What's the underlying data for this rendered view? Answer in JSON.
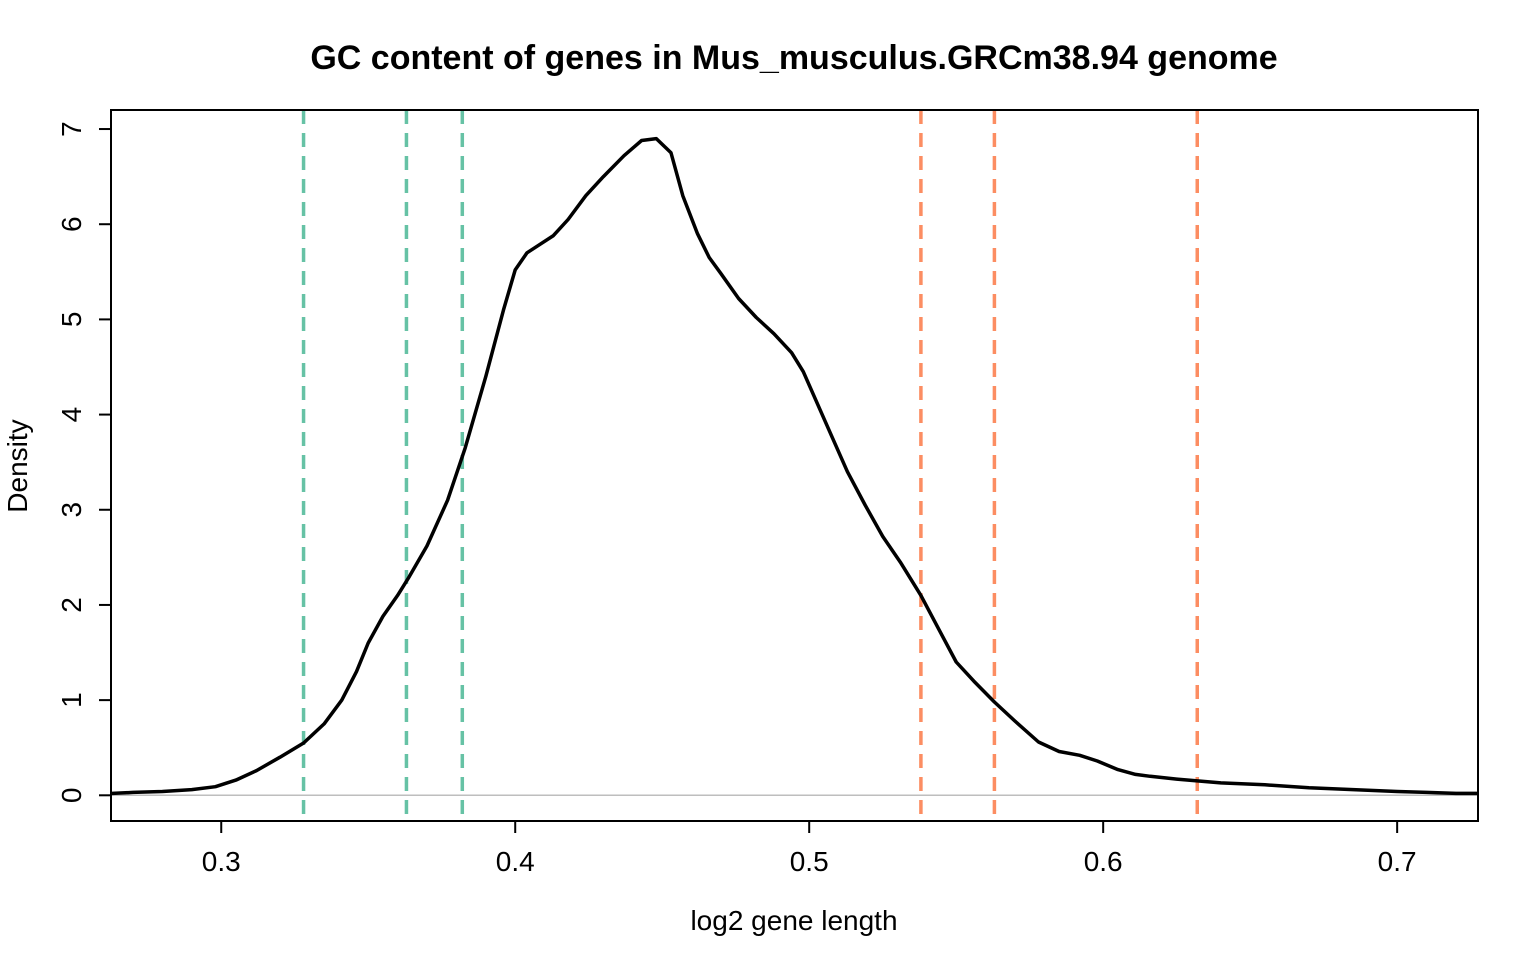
{
  "chart_data": {
    "type": "line",
    "title": "GC content of genes in Mus_musculus.GRCm38.94 genome",
    "xlabel": "log2 gene length",
    "ylabel": "Density",
    "xlim": [
      0.2625,
      0.7275
    ],
    "ylim": [
      -0.27,
      7.2
    ],
    "x_ticks": [
      0.3,
      0.4,
      0.5,
      0.6,
      0.7
    ],
    "x_tick_labels": [
      "0.3",
      "0.4",
      "0.5",
      "0.6",
      "0.7"
    ],
    "y_ticks": [
      0,
      1,
      2,
      3,
      4,
      5,
      6,
      7
    ],
    "y_tick_labels": [
      "0",
      "1",
      "2",
      "3",
      "4",
      "5",
      "6",
      "7"
    ],
    "baseline": 0,
    "grid": false,
    "series": [
      {
        "color": "#000000",
        "x": [
          0.263,
          0.27,
          0.28,
          0.29,
          0.298,
          0.305,
          0.312,
          0.32,
          0.328,
          0.335,
          0.341,
          0.346,
          0.35,
          0.355,
          0.36,
          0.364,
          0.37,
          0.377,
          0.383,
          0.39,
          0.396,
          0.4,
          0.404,
          0.408,
          0.413,
          0.418,
          0.424,
          0.43,
          0.437,
          0.443,
          0.448,
          0.453,
          0.457,
          0.462,
          0.466,
          0.47,
          0.476,
          0.482,
          0.488,
          0.494,
          0.498,
          0.503,
          0.508,
          0.513,
          0.519,
          0.525,
          0.531,
          0.538,
          0.544,
          0.55,
          0.556,
          0.563,
          0.57,
          0.578,
          0.585,
          0.592,
          0.598,
          0.605,
          0.611,
          0.616,
          0.625,
          0.64,
          0.655,
          0.67,
          0.685,
          0.7,
          0.71,
          0.72,
          0.727
        ],
        "y": [
          0.02,
          0.03,
          0.04,
          0.06,
          0.09,
          0.16,
          0.26,
          0.4,
          0.55,
          0.75,
          1.0,
          1.3,
          1.6,
          1.88,
          2.1,
          2.3,
          2.62,
          3.1,
          3.65,
          4.4,
          5.1,
          5.52,
          5.7,
          5.78,
          5.88,
          6.05,
          6.3,
          6.5,
          6.72,
          6.88,
          6.9,
          6.75,
          6.3,
          5.9,
          5.65,
          5.48,
          5.22,
          5.02,
          4.85,
          4.65,
          4.45,
          4.1,
          3.75,
          3.4,
          3.05,
          2.72,
          2.45,
          2.1,
          1.75,
          1.4,
          1.2,
          0.98,
          0.78,
          0.56,
          0.46,
          0.42,
          0.36,
          0.27,
          0.22,
          0.2,
          0.17,
          0.13,
          0.11,
          0.08,
          0.06,
          0.04,
          0.03,
          0.02,
          0.02
        ]
      }
    ],
    "vlines": [
      {
        "x": 0.328,
        "color": "#66C2A5",
        "style": "dashed"
      },
      {
        "x": 0.363,
        "color": "#66C2A5",
        "style": "dashed"
      },
      {
        "x": 0.382,
        "color": "#66C2A5",
        "style": "dashed"
      },
      {
        "x": 0.538,
        "color": "#FC8D62",
        "style": "dashed"
      },
      {
        "x": 0.563,
        "color": "#FC8D62",
        "style": "dashed"
      },
      {
        "x": 0.632,
        "color": "#FC8D62",
        "style": "dashed"
      }
    ]
  }
}
